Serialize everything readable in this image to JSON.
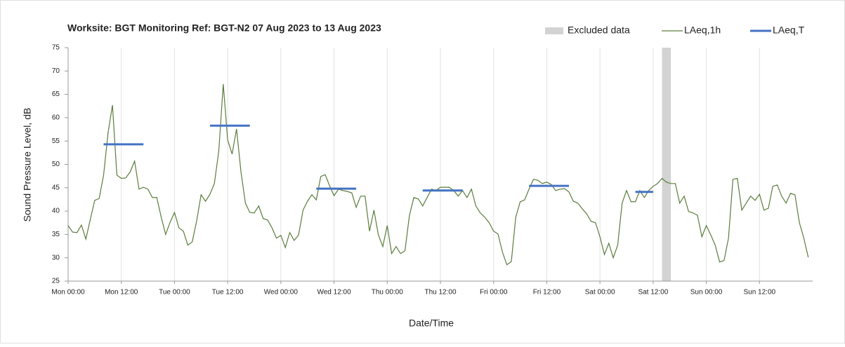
{
  "chart_data": {
    "type": "line",
    "title": "Worksite: BGT    Monitoring Ref: BGT-N2     07 Aug 2023 to 13 Aug 2023",
    "x_label": "Date/Time",
    "y_label": "Sound Pressure Level, dB",
    "xlim": [
      0,
      168
    ],
    "ylim": [
      25,
      75
    ],
    "yticks": [
      25,
      30,
      35,
      40,
      45,
      50,
      55,
      60,
      65,
      70,
      75
    ],
    "xticks": [
      {
        "value": 0,
        "label": "Mon 00:00"
      },
      {
        "value": 12,
        "label": "Mon 12:00"
      },
      {
        "value": 24,
        "label": "Tue 00:00"
      },
      {
        "value": 36,
        "label": "Tue 12:00"
      },
      {
        "value": 48,
        "label": "Wed 00:00"
      },
      {
        "value": 60,
        "label": "Wed 12:00"
      },
      {
        "value": 72,
        "label": "Thu 00:00"
      },
      {
        "value": 84,
        "label": "Thu 12:00"
      },
      {
        "value": 96,
        "label": "Fri 00:00"
      },
      {
        "value": 108,
        "label": "Fri 12:00"
      },
      {
        "value": 120,
        "label": "Sat 00:00"
      },
      {
        "value": 132,
        "label": "Sat 12:00"
      },
      {
        "value": 144,
        "label": "Sun 00:00"
      },
      {
        "value": 156,
        "label": "Sun 12:00"
      }
    ],
    "grid": true,
    "legend": "top-right",
    "excluded": {
      "name": "Excluded data",
      "color": "#d3d3d3",
      "x": [
        134,
        136
      ]
    },
    "series": [
      {
        "name": "LAeq,1h",
        "color": "#5a7d3c",
        "x": [
          0,
          1,
          2,
          3,
          4,
          5,
          6,
          7,
          8,
          9,
          10,
          11,
          12,
          13,
          14,
          15,
          16,
          17,
          18,
          19,
          20,
          21,
          22,
          23,
          24,
          25,
          26,
          27,
          28,
          29,
          30,
          31,
          32,
          33,
          34,
          35,
          36,
          37,
          38,
          39,
          40,
          41,
          42,
          43,
          44,
          45,
          46,
          47,
          48,
          49,
          50,
          51,
          52,
          53,
          54,
          55,
          56,
          57,
          58,
          59,
          60,
          61,
          62,
          63,
          64,
          65,
          66,
          67,
          68,
          69,
          70,
          71,
          72,
          73,
          74,
          75,
          76,
          77,
          78,
          79,
          80,
          81,
          82,
          83,
          84,
          85,
          86,
          87,
          88,
          89,
          90,
          91,
          92,
          93,
          94,
          95,
          96,
          97,
          98,
          99,
          100,
          101,
          102,
          103,
          104,
          105,
          106,
          107,
          108,
          109,
          110,
          111,
          112,
          113,
          114,
          115,
          116,
          117,
          118,
          119,
          120,
          121,
          122,
          123,
          124,
          125,
          126,
          127,
          128,
          129,
          130,
          131,
          132,
          133,
          134,
          135,
          136,
          137,
          138,
          139,
          140,
          141,
          142,
          143,
          144,
          145,
          146,
          147,
          148,
          149,
          150,
          151,
          152,
          153,
          154,
          155,
          156,
          157,
          158,
          159,
          160,
          161,
          162,
          163,
          164,
          165,
          166,
          167
        ],
        "values": [
          36.9,
          35.5,
          35.4,
          37,
          34,
          38.2,
          42.3,
          42.7,
          47.7,
          56.7,
          62.7,
          47.7,
          47,
          47.1,
          48.4,
          50.7,
          44.7,
          45.1,
          44.7,
          42.9,
          42.9,
          38.7,
          35,
          37.6,
          39.7,
          36.4,
          35.7,
          32.7,
          33.4,
          37.9,
          43.5,
          42.1,
          43.6,
          45.9,
          52.9,
          67.2,
          55.2,
          52.2,
          57.6,
          48.4,
          41.7,
          39.7,
          39.6,
          41.1,
          38.4,
          38.1,
          36.4,
          34.2,
          34.8,
          32.2,
          35.4,
          33.7,
          34.9,
          40.2,
          42.1,
          43.5,
          42.4,
          47.4,
          47.8,
          45.4,
          43.3,
          44.7,
          44.4,
          44.2,
          43.9,
          40.8,
          43.2,
          43.2,
          35.7,
          40.2,
          34.9,
          32.4,
          36.9,
          30.9,
          32.4,
          30.9,
          31.5,
          39,
          42.9,
          42.6,
          41.1,
          42.9,
          44.7,
          44.4,
          45.1,
          45.1,
          45.1,
          44.4,
          43.2,
          44.4,
          42.9,
          44.7,
          41.1,
          39.6,
          38.7,
          37.5,
          35.7,
          35.1,
          31.2,
          28.5,
          29.2,
          38.7,
          42,
          42.4,
          44.7,
          46.8,
          46.6,
          45.9,
          46.2,
          45.7,
          44.4,
          44.7,
          44.8,
          44.1,
          42.1,
          41.7,
          40.5,
          39.4,
          37.8,
          37.5,
          34.5,
          30.7,
          33.1,
          30,
          32.7,
          41.7,
          44.4,
          42,
          42,
          44.4,
          42.9,
          44.4,
          45.3,
          45.9,
          47,
          46.2,
          45.9,
          45.9,
          41.7,
          43.2,
          39.9,
          39.6,
          39.1,
          34.5,
          36.9,
          34.9,
          32.7,
          29.1,
          29.4,
          34.2,
          46.8,
          47,
          40.2,
          41.7,
          43.2,
          42.3,
          43.6,
          40.2,
          40.6,
          45.3,
          45.6,
          43.2,
          41.7,
          43.8,
          43.5,
          37.5,
          34.2,
          30.1
        ]
      },
      {
        "name": "LAeq,T",
        "color": "#4472c4",
        "x": [
          8,
          17,
          null,
          32,
          41,
          null,
          56,
          65,
          null,
          80,
          89,
          null,
          104,
          113,
          null,
          128,
          132
        ],
        "values": [
          54.3,
          54.3,
          null,
          58.3,
          58.3,
          null,
          44.8,
          44.8,
          null,
          44.4,
          44.4,
          null,
          45.4,
          45.4,
          null,
          44.1,
          44.1
        ]
      }
    ]
  }
}
